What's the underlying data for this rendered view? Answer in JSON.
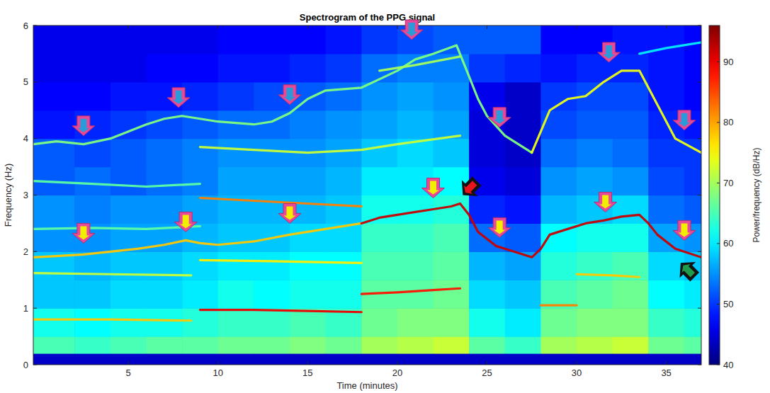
{
  "chart_data": {
    "type": "spectrogram",
    "title": "Spectrogram of the PPG signal",
    "x_label": "Time (minutes)",
    "y_label": "Frequency (Hz)",
    "xlim": [
      -0.3,
      36.95
    ],
    "ylim": [
      0,
      6
    ],
    "xticks": [
      5,
      10,
      15,
      20,
      25,
      30,
      35
    ],
    "yticks": [
      0,
      1,
      2,
      3,
      4,
      5,
      6
    ],
    "colorbar": {
      "label": "Power/frequency (dB/Hz)",
      "range": [
        40,
        96
      ],
      "ticks": [
        40,
        50,
        60,
        70,
        80,
        90
      ]
    },
    "cells": {
      "x_edges": [
        -0.3,
        2,
        4,
        6,
        8,
        10,
        12,
        14,
        16,
        18,
        20,
        22,
        24,
        26,
        28,
        30,
        32,
        34,
        36,
        36.95
      ],
      "y_edges": [
        0,
        0.2,
        0.5,
        1,
        1.5,
        2,
        2.5,
        3,
        3.5,
        4,
        4.5,
        5,
        5.5,
        6
      ],
      "values": [
        [
          44,
          65,
          62,
          58,
          58,
          55,
          55,
          52,
          52,
          48,
          47,
          46,
          46
        ],
        [
          44,
          64,
          61,
          58,
          57,
          55,
          54,
          53,
          51,
          49,
          47,
          46,
          46
        ],
        [
          44,
          65,
          62,
          59,
          58,
          56,
          55,
          52,
          52,
          50,
          48,
          46,
          46
        ],
        [
          44,
          66,
          62,
          59,
          58,
          56,
          55,
          53,
          53,
          51,
          48,
          47,
          46
        ],
        [
          44,
          66,
          63,
          60,
          59,
          57,
          56,
          54,
          54,
          52,
          49,
          47,
          46
        ],
        [
          44,
          67,
          64,
          62,
          60,
          58,
          57,
          56,
          55,
          53,
          50,
          48,
          47
        ],
        [
          44,
          67,
          64,
          61,
          60,
          58,
          57,
          56,
          55,
          53,
          51,
          48,
          47
        ],
        [
          44,
          68,
          65,
          62,
          61,
          59,
          57,
          56,
          55,
          54,
          52,
          49,
          47
        ],
        [
          44,
          67,
          64,
          62,
          61,
          59,
          58,
          57,
          56,
          55,
          53,
          50,
          48
        ],
        [
          44,
          70,
          67,
          66,
          65,
          64,
          62,
          60,
          58,
          56,
          55,
          53,
          50
        ],
        [
          44,
          71,
          68,
          66,
          65,
          64,
          62,
          60,
          59,
          57,
          56,
          54,
          51
        ],
        [
          44,
          72,
          68,
          67,
          66,
          65,
          63,
          61,
          58,
          56,
          55,
          54,
          52
        ],
        [
          44,
          66,
          62,
          59,
          57,
          53,
          49,
          46,
          45,
          45,
          46,
          50,
          52
        ],
        [
          44,
          64,
          60,
          58,
          56,
          52,
          48,
          45,
          44,
          44,
          44,
          49,
          52
        ],
        [
          44,
          70,
          67,
          65,
          63,
          61,
          57,
          55,
          53,
          51,
          50,
          48,
          47
        ],
        [
          44,
          71,
          68,
          66,
          64,
          62,
          58,
          56,
          54,
          52,
          51,
          49,
          47
        ],
        [
          44,
          72,
          68,
          67,
          65,
          62,
          59,
          55,
          53,
          52,
          51,
          49,
          48
        ],
        [
          44,
          67,
          64,
          61,
          59,
          56,
          53,
          51,
          50,
          49,
          48,
          48,
          48
        ],
        [
          44,
          66,
          63,
          60,
          58,
          55,
          52,
          50,
          50,
          48,
          47,
          47,
          47
        ]
      ]
    },
    "series": [
      {
        "x": [
          -0.3,
          1,
          2.5,
          4,
          5.5,
          7,
          8.2,
          9,
          10,
          12,
          14,
          16,
          18
        ],
        "values": [
          1.9,
          1.92,
          1.95,
          2.0,
          2.05,
          2.12,
          2.2,
          2.15,
          2.12,
          2.18,
          2.3,
          2.4,
          2.5
        ],
        "power": 78
      },
      {
        "x": [
          18,
          19,
          20,
          21,
          22,
          23,
          23.5,
          24,
          24.5,
          25.5,
          26.5,
          27.5,
          28,
          28.5,
          29.5,
          30.5,
          31.5,
          32.5,
          33.5,
          34,
          34.5,
          35.5,
          36.95
        ],
        "values": [
          2.5,
          2.6,
          2.65,
          2.7,
          2.75,
          2.8,
          2.85,
          2.65,
          2.35,
          2.1,
          2.0,
          1.9,
          2.05,
          2.3,
          2.4,
          2.5,
          2.55,
          2.62,
          2.65,
          2.5,
          2.3,
          2.05,
          1.9
        ],
        "power": 92
      },
      {
        "x": [
          -0.3,
          4,
          8.5
        ],
        "values": [
          0.8,
          0.8,
          0.78
        ],
        "power": 78
      },
      {
        "x": [
          9,
          12,
          15,
          18
        ],
        "values": [
          0.97,
          0.97,
          0.95,
          0.93
        ],
        "power": 90
      },
      {
        "x": [
          18,
          20,
          22,
          23.5
        ],
        "values": [
          1.25,
          1.28,
          1.32,
          1.35
        ],
        "power": 88
      },
      {
        "x": [
          28,
          29,
          30
        ],
        "values": [
          1.05,
          1.05,
          1.05
        ],
        "power": 82
      },
      {
        "x": [
          30,
          32,
          33.5
        ],
        "values": [
          1.6,
          1.58,
          1.55
        ],
        "power": 78
      },
      {
        "x": [
          -0.3,
          4,
          8.5
        ],
        "values": [
          1.62,
          1.6,
          1.58
        ],
        "power": 72
      },
      {
        "x": [
          9,
          13,
          18
        ],
        "values": [
          1.85,
          1.83,
          1.8
        ],
        "power": 76
      },
      {
        "x": [
          9,
          12,
          15,
          18
        ],
        "values": [
          2.95,
          2.9,
          2.85,
          2.8
        ],
        "power": 82
      },
      {
        "x": [
          -0.3,
          3,
          6,
          9
        ],
        "values": [
          2.4,
          2.42,
          2.4,
          2.45
        ],
        "power": 66
      },
      {
        "x": [
          -0.3,
          3,
          6,
          9
        ],
        "values": [
          3.25,
          3.2,
          3.15,
          3.2
        ],
        "power": 66
      },
      {
        "x": [
          9,
          12,
          15,
          18,
          20,
          23.5
        ],
        "values": [
          3.85,
          3.8,
          3.75,
          3.8,
          3.9,
          4.05
        ],
        "power": 72
      },
      {
        "x": [
          -0.3,
          1,
          2.5,
          4,
          6,
          7,
          8,
          10,
          12,
          13,
          14,
          15,
          16,
          18,
          19,
          20,
          21,
          22,
          23.3,
          24,
          24.5,
          25,
          26,
          27.5
        ],
        "values": [
          3.9,
          3.95,
          3.9,
          4.0,
          4.25,
          4.35,
          4.4,
          4.3,
          4.25,
          4.3,
          4.45,
          4.7,
          4.85,
          4.9,
          5.05,
          5.2,
          5.4,
          5.5,
          5.65,
          5.1,
          4.7,
          4.4,
          4.05,
          3.75
        ],
        "power": 68
      },
      {
        "x": [
          27.5,
          28.5,
          29.5,
          30.5,
          31.5,
          32.5,
          33.5,
          34.5,
          35.5,
          36.95
        ],
        "values": [
          3.75,
          4.5,
          4.7,
          4.75,
          5.0,
          5.2,
          5.2,
          4.6,
          4.0,
          3.75
        ],
        "power": 74
      },
      {
        "x": [
          19,
          21,
          23.5
        ],
        "values": [
          5.2,
          5.3,
          5.45
        ],
        "power": 70
      },
      {
        "x": [
          33.5,
          35,
          36.95
        ],
        "values": [
          5.5,
          5.6,
          5.7
        ],
        "power": 60
      }
    ]
  }
}
